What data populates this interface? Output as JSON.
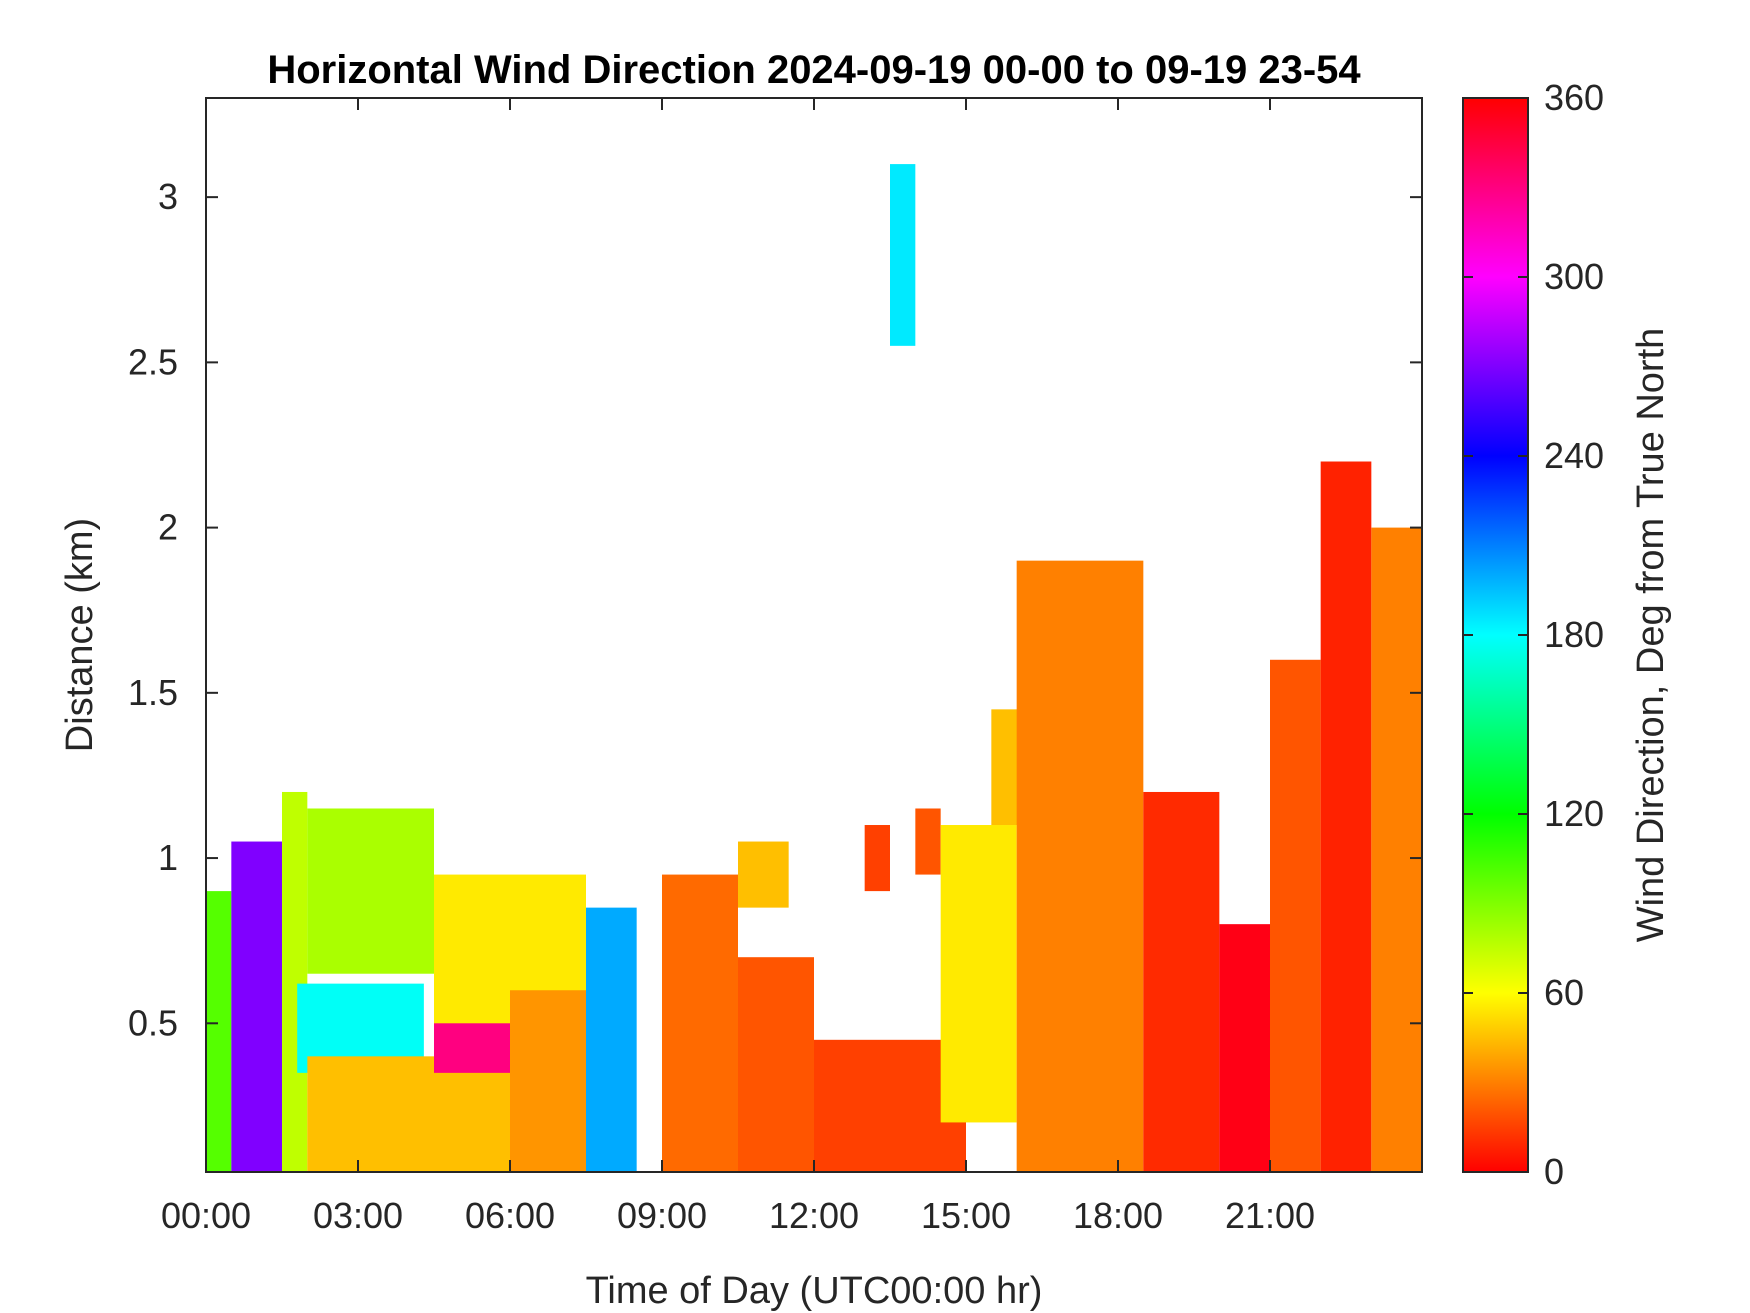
{
  "chart_data": {
    "type": "heatmap",
    "title": "Horizontal Wind Direction 2024-09-19 00-00 to 09-19 23-54",
    "xlabel": "Time of Day (UTC00:00 hr)",
    "ylabel": "Distance (km)",
    "colorbar_label": "Wind Direction, Deg from True North",
    "x_tick_labels": [
      "00:00",
      "03:00",
      "06:00",
      "09:00",
      "12:00",
      "15:00",
      "18:00",
      "21:00"
    ],
    "x_tick_hours": [
      0,
      3,
      6,
      9,
      12,
      15,
      18,
      21
    ],
    "y_ticks": [
      0.5,
      1,
      1.5,
      2,
      2.5,
      3
    ],
    "y_tick_labels": [
      "0.5",
      "1",
      "1.5",
      "2",
      "2.5",
      "3"
    ],
    "xlim_hours": [
      0,
      24
    ],
    "ylim_km": [
      0.05,
      3.3
    ],
    "colorbar_ticks": [
      0,
      60,
      120,
      180,
      240,
      300,
      360
    ],
    "colorbar_tick_labels": [
      "0",
      "60",
      "120",
      "180",
      "240",
      "300",
      "360"
    ],
    "clim": [
      0,
      360
    ],
    "colormap": "hsv",
    "grid": false,
    "cells": [
      {
        "t": [
          0.0,
          0.5
        ],
        "h": [
          0.05,
          0.9
        ],
        "dir": 100
      },
      {
        "t": [
          0.5,
          1.5
        ],
        "h": [
          0.05,
          1.05
        ],
        "dir": 270
      },
      {
        "t": [
          1.5,
          2.0
        ],
        "h": [
          0.05,
          1.2
        ],
        "dir": 75
      },
      {
        "t": [
          2.0,
          4.5
        ],
        "h": [
          0.65,
          1.15
        ],
        "dir": 80
      },
      {
        "t": [
          1.8,
          4.3
        ],
        "h": [
          0.35,
          0.62
        ],
        "dir": 178
      },
      {
        "t": [
          2.0,
          6.0
        ],
        "h": [
          0.05,
          0.4
        ],
        "dir": 45
      },
      {
        "t": [
          4.5,
          6.0
        ],
        "h": [
          0.35,
          0.7
        ],
        "dir": 330
      },
      {
        "t": [
          4.5,
          7.5
        ],
        "h": [
          0.5,
          0.95
        ],
        "dir": 55
      },
      {
        "t": [
          6.0,
          7.5
        ],
        "h": [
          0.05,
          0.6
        ],
        "dir": 35
      },
      {
        "t": [
          7.5,
          8.5
        ],
        "h": [
          0.05,
          0.85
        ],
        "dir": 200
      },
      {
        "t": [
          9.0,
          10.5
        ],
        "h": [
          0.05,
          0.95
        ],
        "dir": 25
      },
      {
        "t": [
          10.5,
          12.0
        ],
        "h": [
          0.05,
          0.7
        ],
        "dir": 20
      },
      {
        "t": [
          10.5,
          11.5
        ],
        "h": [
          0.85,
          1.05
        ],
        "dir": 45
      },
      {
        "t": [
          12.0,
          15.0
        ],
        "h": [
          0.05,
          0.45
        ],
        "dir": 15
      },
      {
        "t": [
          13.0,
          13.5
        ],
        "h": [
          0.9,
          1.1
        ],
        "dir": 15
      },
      {
        "t": [
          13.5,
          14.0
        ],
        "h": [
          2.55,
          3.1
        ],
        "dir": 185
      },
      {
        "t": [
          14.0,
          14.5
        ],
        "h": [
          0.95,
          1.15
        ],
        "dir": 20
      },
      {
        "t": [
          14.5,
          16.0
        ],
        "h": [
          0.2,
          1.1
        ],
        "dir": 55
      },
      {
        "t": [
          15.5,
          16.5
        ],
        "h": [
          1.1,
          1.45
        ],
        "dir": 45
      },
      {
        "t": [
          16.0,
          18.5
        ],
        "h": [
          0.05,
          1.9
        ],
        "dir": 30
      },
      {
        "t": [
          18.5,
          20.0
        ],
        "h": [
          0.05,
          1.2
        ],
        "dir": 10
      },
      {
        "t": [
          20.0,
          21.0
        ],
        "h": [
          0.05,
          0.8
        ],
        "dir": 355
      },
      {
        "t": [
          21.0,
          22.0
        ],
        "h": [
          0.05,
          1.6
        ],
        "dir": 20
      },
      {
        "t": [
          22.0,
          23.0
        ],
        "h": [
          0.05,
          2.2
        ],
        "dir": 8
      },
      {
        "t": [
          23.0,
          24.0
        ],
        "h": [
          0.05,
          2.0
        ],
        "dir": 30
      }
    ]
  }
}
